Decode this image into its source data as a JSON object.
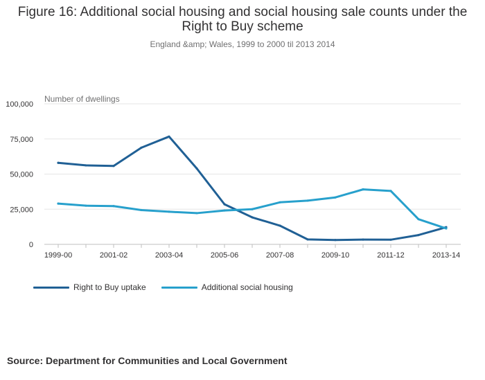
{
  "chart_data": {
    "type": "line",
    "title": "Figure 16: Additional social housing and social housing sale counts under the Right to Buy scheme",
    "subtitle": "England &amp; Wales, 1999 to 2000 til 2013 2014",
    "ylabel": "Number of dwellings",
    "xlabel": "",
    "ylim": [
      0,
      100000
    ],
    "yticks": [
      0,
      25000,
      50000,
      75000,
      100000
    ],
    "ytick_labels": [
      "0",
      "25,000",
      "50,000",
      "75,000",
      "100,000"
    ],
    "categories": [
      "1999-00",
      "2000-01",
      "2001-02",
      "2002-03",
      "2003-04",
      "2004-05",
      "2005-06",
      "2006-07",
      "2007-08",
      "2008-09",
      "2009-10",
      "2010-11",
      "2011-12",
      "2012-13",
      "2013-14"
    ],
    "xtick_labels": [
      "1999-00",
      "2001-02",
      "2003-04",
      "2005-06",
      "2007-08",
      "2009-10",
      "2011-12",
      "2013-14"
    ],
    "series": [
      {
        "name": "Right to Buy uptake",
        "color": "#206095",
        "values": [
          58000,
          56200,
          55800,
          68800,
          76700,
          54000,
          28500,
          19200,
          13300,
          3500,
          3100,
          3400,
          3300,
          6600,
          12200
        ]
      },
      {
        "name": "Additional social housing",
        "color": "#27a0cc",
        "values": [
          29000,
          27500,
          27200,
          24400,
          23200,
          22200,
          24100,
          25000,
          29900,
          31100,
          33400,
          39100,
          38000,
          17900,
          11300
        ]
      }
    ],
    "legend_position": "bottom-left",
    "grid": true
  },
  "source": "Source: Department for Communities and Local Government"
}
